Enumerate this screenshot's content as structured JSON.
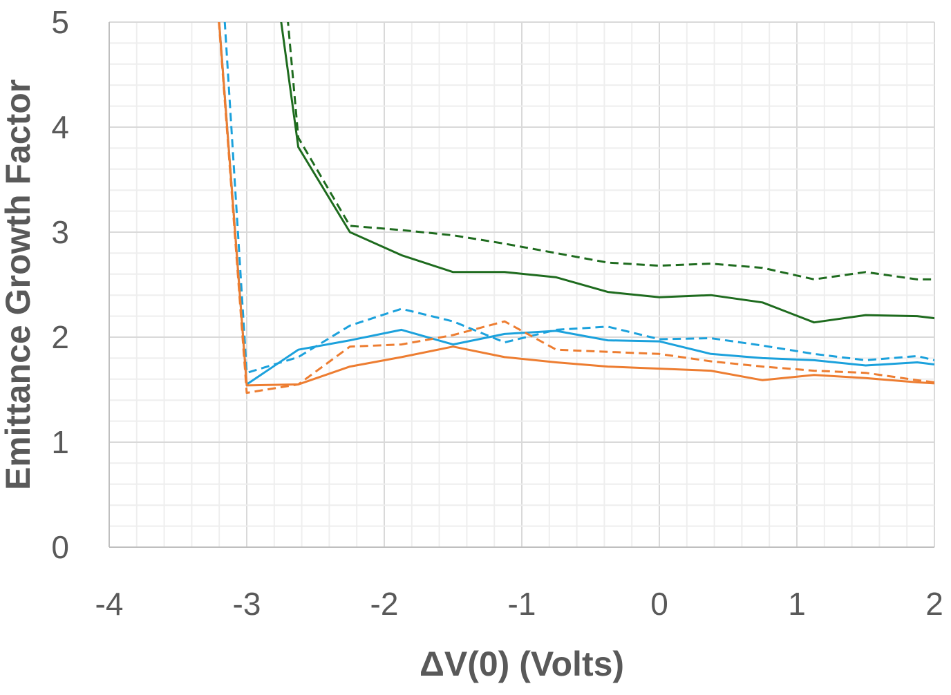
{
  "chart_data": {
    "type": "line",
    "title": "",
    "xlabel": "ΔV(0) (Volts)",
    "ylabel": "Emittance Growth Factor",
    "xlim": [
      -4,
      2
    ],
    "ylim": [
      0,
      5
    ],
    "xticks": [
      "-4",
      "-3",
      "-2",
      "-1",
      "0",
      "1",
      "2"
    ],
    "yticks": [
      "0",
      "1",
      "2",
      "3",
      "4",
      "5"
    ],
    "grid": true,
    "legend": "none",
    "x": [
      -3.375,
      -3,
      -2.625,
      -2.25,
      -1.875,
      -1.5,
      -1.125,
      -0.75,
      -0.375,
      0,
      0.375,
      0.75,
      1.125,
      1.5,
      1.875,
      2
    ],
    "series": [
      {
        "name": "green-solid",
        "color": "#1e6b1e",
        "dash": false,
        "values": [
          null,
          7.4,
          3.81,
          3.0,
          2.78,
          2.62,
          2.62,
          2.57,
          2.43,
          2.38,
          2.4,
          2.33,
          2.14,
          2.21,
          2.2,
          2.18
        ]
      },
      {
        "name": "green-dashed",
        "color": "#1e6b1e",
        "dash": true,
        "values": [
          null,
          9.4,
          3.9,
          3.06,
          3.02,
          2.97,
          2.89,
          2.8,
          2.71,
          2.68,
          2.7,
          2.66,
          2.55,
          2.62,
          2.55,
          2.55
        ]
      },
      {
        "name": "blue-solid",
        "color": "#1ba1dc",
        "dash": false,
        "values": [
          8.0,
          1.55,
          1.88,
          1.97,
          2.07,
          1.93,
          2.03,
          2.06,
          1.97,
          1.96,
          1.84,
          1.8,
          1.78,
          1.73,
          1.76,
          1.74
        ]
      },
      {
        "name": "blue-dashed",
        "color": "#1ba1dc",
        "dash": true,
        "values": [
          9.5,
          1.66,
          1.81,
          2.11,
          2.27,
          2.15,
          1.95,
          2.07,
          2.1,
          1.98,
          1.99,
          1.92,
          1.84,
          1.78,
          1.82,
          1.78
        ]
      },
      {
        "name": "orange-dashed",
        "color": "#ed7d31",
        "dash": true,
        "values": [
          8.0,
          1.47,
          1.55,
          1.91,
          1.93,
          2.02,
          2.15,
          1.88,
          1.86,
          1.84,
          1.77,
          1.72,
          1.68,
          1.66,
          1.59,
          1.57
        ]
      },
      {
        "name": "orange-solid",
        "color": "#ed7d31",
        "dash": false,
        "values": [
          8.0,
          1.54,
          1.55,
          1.72,
          1.81,
          1.91,
          1.81,
          1.76,
          1.72,
          1.7,
          1.68,
          1.59,
          1.64,
          1.61,
          1.57,
          1.56
        ]
      }
    ]
  }
}
